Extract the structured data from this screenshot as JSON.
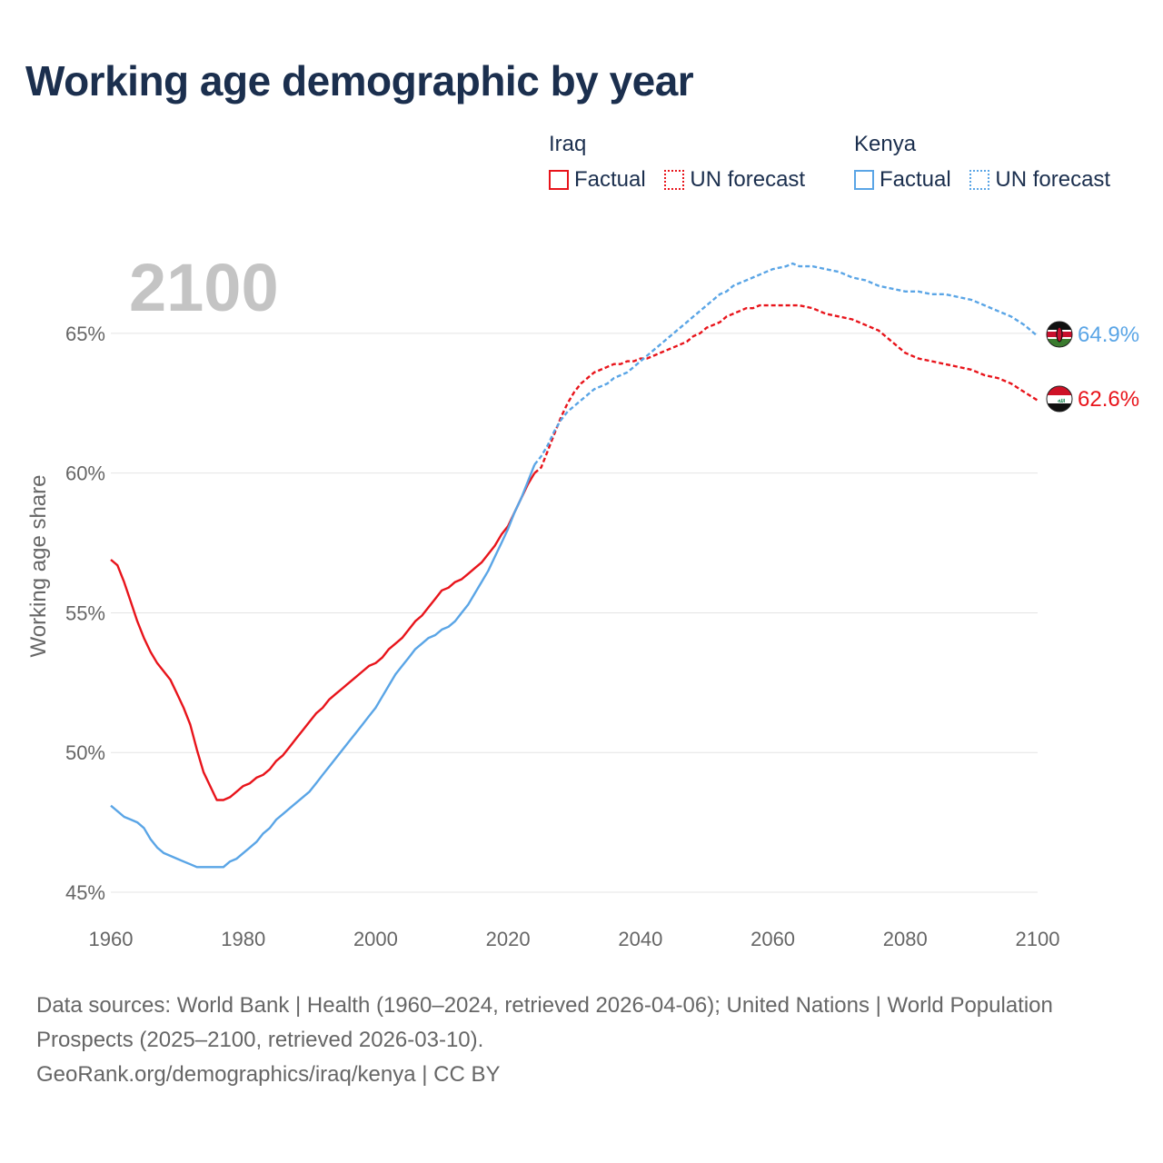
{
  "title": "Working age demographic by year",
  "legend": {
    "groups": [
      {
        "name": "Iraq",
        "factual": "Factual",
        "forecast": "UN forecast",
        "color": "#e8141b"
      },
      {
        "name": "Kenya",
        "factual": "Factual",
        "forecast": "UN forecast",
        "color": "#5aa5e6"
      }
    ]
  },
  "year_watermark": "2100",
  "footer": {
    "sources": "Data sources: World Bank | Health (1960–2024, retrieved 2026-04-06); United Nations | World Population Prospects (2025–2100, retrieved 2026-03-10).",
    "link": "GeoRank.org/demographics/iraq/kenya | CC BY"
  },
  "chart_data": {
    "type": "line",
    "title": "Working age demographic by year",
    "xlabel": "",
    "ylabel": "Working age share",
    "xlim": [
      1960,
      2100
    ],
    "ylim": [
      45,
      67.5
    ],
    "x_ticks": [
      1960,
      1980,
      2000,
      2020,
      2040,
      2060,
      2080,
      2100
    ],
    "y_ticks": [
      45,
      50,
      55,
      60,
      65
    ],
    "y_tick_labels": [
      "45%",
      "50%",
      "55%",
      "60%",
      "65%"
    ],
    "grid": true,
    "series": [
      {
        "name": "Iraq",
        "color": "#e8141b",
        "end_label": "62.6%",
        "factual": [
          [
            1960,
            56.9
          ],
          [
            1961,
            56.7
          ],
          [
            1962,
            56.1
          ],
          [
            1963,
            55.4
          ],
          [
            1964,
            54.7
          ],
          [
            1965,
            54.1
          ],
          [
            1966,
            53.6
          ],
          [
            1967,
            53.2
          ],
          [
            1968,
            52.9
          ],
          [
            1969,
            52.6
          ],
          [
            1970,
            52.1
          ],
          [
            1971,
            51.6
          ],
          [
            1972,
            51.0
          ],
          [
            1973,
            50.1
          ],
          [
            1974,
            49.3
          ],
          [
            1975,
            48.8
          ],
          [
            1976,
            48.3
          ],
          [
            1977,
            48.3
          ],
          [
            1978,
            48.4
          ],
          [
            1979,
            48.6
          ],
          [
            1980,
            48.8
          ],
          [
            1981,
            48.9
          ],
          [
            1982,
            49.1
          ],
          [
            1983,
            49.2
          ],
          [
            1984,
            49.4
          ],
          [
            1985,
            49.7
          ],
          [
            1986,
            49.9
          ],
          [
            1987,
            50.2
          ],
          [
            1988,
            50.5
          ],
          [
            1989,
            50.8
          ],
          [
            1990,
            51.1
          ],
          [
            1991,
            51.4
          ],
          [
            1992,
            51.6
          ],
          [
            1993,
            51.9
          ],
          [
            1994,
            52.1
          ],
          [
            1995,
            52.3
          ],
          [
            1996,
            52.5
          ],
          [
            1997,
            52.7
          ],
          [
            1998,
            52.9
          ],
          [
            1999,
            53.1
          ],
          [
            2000,
            53.2
          ],
          [
            2001,
            53.4
          ],
          [
            2002,
            53.7
          ],
          [
            2003,
            53.9
          ],
          [
            2004,
            54.1
          ],
          [
            2005,
            54.4
          ],
          [
            2006,
            54.7
          ],
          [
            2007,
            54.9
          ],
          [
            2008,
            55.2
          ],
          [
            2009,
            55.5
          ],
          [
            2010,
            55.8
          ],
          [
            2011,
            55.9
          ],
          [
            2012,
            56.1
          ],
          [
            2013,
            56.2
          ],
          [
            2014,
            56.4
          ],
          [
            2015,
            56.6
          ],
          [
            2016,
            56.8
          ],
          [
            2017,
            57.1
          ],
          [
            2018,
            57.4
          ],
          [
            2019,
            57.8
          ],
          [
            2020,
            58.1
          ],
          [
            2021,
            58.6
          ],
          [
            2022,
            59.1
          ],
          [
            2023,
            59.6
          ],
          [
            2024,
            60.0
          ]
        ],
        "forecast": [
          [
            2024,
            60.0
          ],
          [
            2025,
            60.2
          ],
          [
            2026,
            60.8
          ],
          [
            2027,
            61.4
          ],
          [
            2028,
            62.0
          ],
          [
            2029,
            62.5
          ],
          [
            2030,
            62.9
          ],
          [
            2031,
            63.2
          ],
          [
            2032,
            63.4
          ],
          [
            2033,
            63.6
          ],
          [
            2034,
            63.7
          ],
          [
            2035,
            63.8
          ],
          [
            2036,
            63.9
          ],
          [
            2037,
            63.9
          ],
          [
            2038,
            64.0
          ],
          [
            2039,
            64.0
          ],
          [
            2040,
            64.1
          ],
          [
            2041,
            64.1
          ],
          [
            2042,
            64.2
          ],
          [
            2043,
            64.3
          ],
          [
            2044,
            64.4
          ],
          [
            2045,
            64.5
          ],
          [
            2046,
            64.6
          ],
          [
            2047,
            64.7
          ],
          [
            2048,
            64.9
          ],
          [
            2049,
            65.0
          ],
          [
            2050,
            65.2
          ],
          [
            2051,
            65.3
          ],
          [
            2052,
            65.4
          ],
          [
            2053,
            65.6
          ],
          [
            2054,
            65.7
          ],
          [
            2055,
            65.8
          ],
          [
            2056,
            65.9
          ],
          [
            2057,
            65.9
          ],
          [
            2058,
            66.0
          ],
          [
            2059,
            66.0
          ],
          [
            2060,
            66.0
          ],
          [
            2062,
            66.0
          ],
          [
            2064,
            66.0
          ],
          [
            2066,
            65.9
          ],
          [
            2067,
            65.8
          ],
          [
            2068,
            65.7
          ],
          [
            2070,
            65.6
          ],
          [
            2072,
            65.5
          ],
          [
            2074,
            65.3
          ],
          [
            2076,
            65.1
          ],
          [
            2078,
            64.7
          ],
          [
            2080,
            64.3
          ],
          [
            2082,
            64.1
          ],
          [
            2084,
            64.0
          ],
          [
            2086,
            63.9
          ],
          [
            2088,
            63.8
          ],
          [
            2090,
            63.7
          ],
          [
            2092,
            63.5
          ],
          [
            2094,
            63.4
          ],
          [
            2096,
            63.2
          ],
          [
            2098,
            62.9
          ],
          [
            2100,
            62.6
          ]
        ]
      },
      {
        "name": "Kenya",
        "color": "#5aa5e6",
        "end_label": "64.9%",
        "factual": [
          [
            1960,
            48.1
          ],
          [
            1961,
            47.9
          ],
          [
            1962,
            47.7
          ],
          [
            1963,
            47.6
          ],
          [
            1964,
            47.5
          ],
          [
            1965,
            47.3
          ],
          [
            1966,
            46.9
          ],
          [
            1967,
            46.6
          ],
          [
            1968,
            46.4
          ],
          [
            1969,
            46.3
          ],
          [
            1970,
            46.2
          ],
          [
            1971,
            46.1
          ],
          [
            1972,
            46.0
          ],
          [
            1973,
            45.9
          ],
          [
            1974,
            45.9
          ],
          [
            1975,
            45.9
          ],
          [
            1976,
            45.9
          ],
          [
            1977,
            45.9
          ],
          [
            1978,
            46.1
          ],
          [
            1979,
            46.2
          ],
          [
            1980,
            46.4
          ],
          [
            1981,
            46.6
          ],
          [
            1982,
            46.8
          ],
          [
            1983,
            47.1
          ],
          [
            1984,
            47.3
          ],
          [
            1985,
            47.6
          ],
          [
            1986,
            47.8
          ],
          [
            1987,
            48.0
          ],
          [
            1988,
            48.2
          ],
          [
            1989,
            48.4
          ],
          [
            1990,
            48.6
          ],
          [
            1991,
            48.9
          ],
          [
            1992,
            49.2
          ],
          [
            1993,
            49.5
          ],
          [
            1994,
            49.8
          ],
          [
            1995,
            50.1
          ],
          [
            1996,
            50.4
          ],
          [
            1997,
            50.7
          ],
          [
            1998,
            51.0
          ],
          [
            1999,
            51.3
          ],
          [
            2000,
            51.6
          ],
          [
            2001,
            52.0
          ],
          [
            2002,
            52.4
          ],
          [
            2003,
            52.8
          ],
          [
            2004,
            53.1
          ],
          [
            2005,
            53.4
          ],
          [
            2006,
            53.7
          ],
          [
            2007,
            53.9
          ],
          [
            2008,
            54.1
          ],
          [
            2009,
            54.2
          ],
          [
            2010,
            54.4
          ],
          [
            2011,
            54.5
          ],
          [
            2012,
            54.7
          ],
          [
            2013,
            55.0
          ],
          [
            2014,
            55.3
          ],
          [
            2015,
            55.7
          ],
          [
            2016,
            56.1
          ],
          [
            2017,
            56.5
          ],
          [
            2018,
            57.0
          ],
          [
            2019,
            57.5
          ],
          [
            2020,
            58.0
          ],
          [
            2021,
            58.6
          ],
          [
            2022,
            59.1
          ],
          [
            2023,
            59.7
          ],
          [
            2024,
            60.3
          ]
        ],
        "forecast": [
          [
            2024,
            60.3
          ],
          [
            2025,
            60.6
          ],
          [
            2026,
            61.0
          ],
          [
            2027,
            61.5
          ],
          [
            2028,
            61.9
          ],
          [
            2029,
            62.2
          ],
          [
            2030,
            62.4
          ],
          [
            2031,
            62.6
          ],
          [
            2032,
            62.8
          ],
          [
            2033,
            63.0
          ],
          [
            2034,
            63.1
          ],
          [
            2035,
            63.2
          ],
          [
            2036,
            63.4
          ],
          [
            2037,
            63.5
          ],
          [
            2038,
            63.6
          ],
          [
            2039,
            63.8
          ],
          [
            2040,
            64.0
          ],
          [
            2041,
            64.2
          ],
          [
            2042,
            64.4
          ],
          [
            2043,
            64.6
          ],
          [
            2044,
            64.8
          ],
          [
            2045,
            65.0
          ],
          [
            2046,
            65.2
          ],
          [
            2047,
            65.4
          ],
          [
            2048,
            65.6
          ],
          [
            2049,
            65.8
          ],
          [
            2050,
            66.0
          ],
          [
            2051,
            66.2
          ],
          [
            2052,
            66.4
          ],
          [
            2053,
            66.5
          ],
          [
            2054,
            66.7
          ],
          [
            2055,
            66.8
          ],
          [
            2056,
            66.9
          ],
          [
            2057,
            67.0
          ],
          [
            2058,
            67.1
          ],
          [
            2059,
            67.2
          ],
          [
            2060,
            67.3
          ],
          [
            2062,
            67.4
          ],
          [
            2063,
            67.5
          ],
          [
            2064,
            67.4
          ],
          [
            2066,
            67.4
          ],
          [
            2068,
            67.3
          ],
          [
            2070,
            67.2
          ],
          [
            2072,
            67.0
          ],
          [
            2074,
            66.9
          ],
          [
            2076,
            66.7
          ],
          [
            2078,
            66.6
          ],
          [
            2080,
            66.5
          ],
          [
            2082,
            66.5
          ],
          [
            2084,
            66.4
          ],
          [
            2086,
            66.4
          ],
          [
            2088,
            66.3
          ],
          [
            2090,
            66.2
          ],
          [
            2092,
            66.0
          ],
          [
            2094,
            65.8
          ],
          [
            2096,
            65.6
          ],
          [
            2098,
            65.3
          ],
          [
            2100,
            64.9
          ]
        ]
      }
    ]
  }
}
